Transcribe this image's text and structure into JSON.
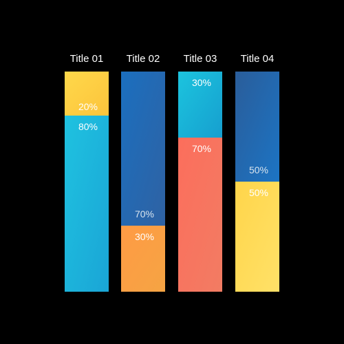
{
  "chart_data": {
    "type": "bar",
    "stacked": true,
    "orientation": "vertical",
    "percent_stacked": true,
    "categories": [
      "Title 01",
      "Title 02",
      "Title 03",
      "Title 04"
    ],
    "bars": [
      {
        "title": "Title 01",
        "segments": [
          {
            "value": 20,
            "label": "20%",
            "color": "#ffd84a",
            "color_end": "#fcc43c"
          },
          {
            "value": 80,
            "label": "80%",
            "color": "#1fc2e0",
            "color_end": "#1aa5d6"
          }
        ]
      },
      {
        "title": "Title 02",
        "segments": [
          {
            "value": 70,
            "label": "70%",
            "color": "#1b6fbf",
            "color_end": "#2f62a3"
          },
          {
            "value": 30,
            "label": "30%",
            "color": "#ff9b45",
            "color_end": "#f5a443"
          }
        ]
      },
      {
        "title": "Title 03",
        "segments": [
          {
            "value": 30,
            "label": "30%",
            "color": "#1cc4de",
            "color_end": "#169fcf"
          },
          {
            "value": 70,
            "label": "70%",
            "color": "#fc6e5c",
            "color_end": "#f27c63"
          }
        ]
      },
      {
        "title": "Title 04",
        "segments": [
          {
            "value": 50,
            "label": "50%",
            "color": "#2a5d9a",
            "color_end": "#1c74c4"
          },
          {
            "value": 50,
            "label": "50%",
            "color": "#ffd54a",
            "color_end": "#ffe168"
          }
        ]
      }
    ],
    "ylim": [
      0,
      100
    ],
    "grid": false,
    "legend": "none",
    "background": "#000000"
  }
}
